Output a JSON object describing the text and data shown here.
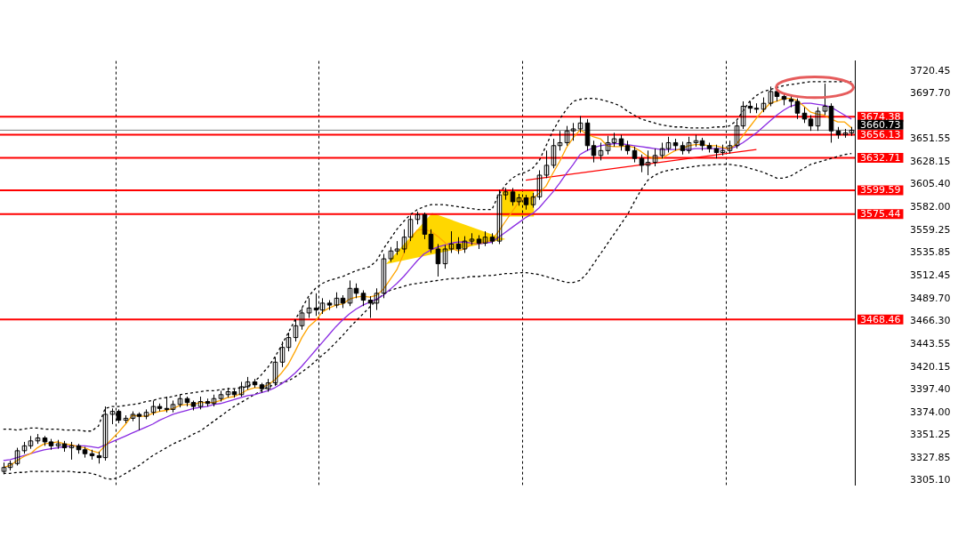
{
  "chart_data": {
    "type": "candlestick",
    "color": "#000000",
    "grid": false,
    "legend": false,
    "marker": "none",
    "tick_labels": "y",
    "categories": [
      null,
      null,
      null,
      null,
      null,
      null,
      null,
      null,
      null,
      null,
      null,
      null,
      null,
      null,
      null,
      null,
      null,
      null,
      null,
      null,
      null,
      null,
      null,
      null,
      null,
      null,
      null,
      null,
      null,
      null,
      null,
      null,
      null,
      null,
      null,
      null,
      null,
      null,
      null,
      null,
      null,
      null,
      null,
      null,
      null,
      null,
      null,
      null,
      null,
      null,
      null,
      null,
      null,
      null,
      null,
      null,
      null,
      null,
      null,
      null,
      null,
      null,
      null,
      null,
      null,
      null,
      null,
      null,
      null,
      null,
      null,
      null,
      null,
      null,
      null,
      null,
      null,
      null,
      null,
      null,
      null,
      null,
      null,
      null,
      null,
      null,
      null,
      null,
      null,
      null,
      null,
      null,
      null,
      null,
      null,
      null,
      null,
      null,
      null,
      null,
      null,
      null,
      null,
      null,
      null,
      null,
      null,
      null,
      null,
      null,
      null,
      null,
      null,
      null,
      null,
      null,
      null,
      null,
      null,
      null,
      null,
      null,
      null,
      null,
      null,
      null
    ],
    "ohlc": [
      [
        3314,
        3323,
        3311,
        3318
      ],
      [
        3318,
        3325,
        3315,
        3322
      ],
      [
        3322,
        3338,
        3320,
        3335
      ],
      [
        3335,
        3344,
        3332,
        3340
      ],
      [
        3340,
        3350,
        3337,
        3345
      ],
      [
        3345,
        3352,
        3342,
        3348
      ],
      [
        3348,
        3350,
        3340,
        3344
      ],
      [
        3344,
        3347,
        3336,
        3340
      ],
      [
        3340,
        3346,
        3337,
        3342
      ],
      [
        3342,
        3345,
        3334,
        3338
      ],
      [
        3338,
        3344,
        3326,
        3340
      ],
      [
        3340,
        3342,
        3332,
        3336
      ],
      [
        3336,
        3339,
        3328,
        3332
      ],
      [
        3332,
        3336,
        3326,
        3330
      ],
      [
        3330,
        3334,
        3322,
        3328
      ],
      [
        3328,
        3380,
        3325,
        3372
      ],
      [
        3372,
        3378,
        3362,
        3375
      ],
      [
        3375,
        3377,
        3363,
        3366
      ],
      [
        3366,
        3371,
        3363,
        3368
      ],
      [
        3368,
        3375,
        3365,
        3372
      ],
      [
        3372,
        3374,
        3356,
        3370
      ],
      [
        3370,
        3377,
        3367,
        3374
      ],
      [
        3374,
        3386,
        3371,
        3380
      ],
      [
        3380,
        3383,
        3375,
        3378
      ],
      [
        3378,
        3390,
        3374,
        3377
      ],
      [
        3377,
        3386,
        3374,
        3382
      ],
      [
        3382,
        3392,
        3379,
        3388
      ],
      [
        3388,
        3390,
        3380,
        3384
      ],
      [
        3384,
        3386,
        3376,
        3380
      ],
      [
        3380,
        3390,
        3377,
        3385
      ],
      [
        3385,
        3388,
        3380,
        3383
      ],
      [
        3383,
        3392,
        3380,
        3388
      ],
      [
        3388,
        3396,
        3385,
        3392
      ],
      [
        3392,
        3399,
        3389,
        3395
      ],
      [
        3395,
        3398,
        3389,
        3392
      ],
      [
        3392,
        3405,
        3390,
        3400
      ],
      [
        3400,
        3410,
        3397,
        3405
      ],
      [
        3405,
        3408,
        3399,
        3402
      ],
      [
        3402,
        3404,
        3394,
        3398
      ],
      [
        3398,
        3408,
        3395,
        3404
      ],
      [
        3404,
        3430,
        3401,
        3425
      ],
      [
        3425,
        3446,
        3420,
        3440
      ],
      [
        3440,
        3455,
        3436,
        3450
      ],
      [
        3450,
        3468,
        3446,
        3462
      ],
      [
        3462,
        3480,
        3458,
        3475
      ],
      [
        3475,
        3490,
        3470,
        3480
      ],
      [
        3480,
        3495,
        3472,
        3478
      ],
      [
        3478,
        3490,
        3474,
        3485
      ],
      [
        3485,
        3488,
        3478,
        3483
      ],
      [
        3483,
        3496,
        3480,
        3490
      ],
      [
        3490,
        3493,
        3480,
        3485
      ],
      [
        3485,
        3508,
        3482,
        3500
      ],
      [
        3500,
        3505,
        3490,
        3495
      ],
      [
        3495,
        3498,
        3482,
        3488
      ],
      [
        3488,
        3492,
        3470,
        3485
      ],
      [
        3485,
        3500,
        3478,
        3495
      ],
      [
        3495,
        3535,
        3490,
        3530
      ],
      [
        3530,
        3542,
        3527,
        3538
      ],
      [
        3538,
        3548,
        3534,
        3540
      ],
      [
        3540,
        3560,
        3536,
        3552
      ],
      [
        3552,
        3574,
        3548,
        3570
      ],
      [
        3570,
        3578,
        3565,
        3575
      ],
      [
        3575,
        3577,
        3550,
        3555
      ],
      [
        3555,
        3560,
        3536,
        3540
      ],
      [
        3540,
        3545,
        3512,
        3525
      ],
      [
        3525,
        3544,
        3520,
        3540
      ],
      [
        3540,
        3558,
        3536,
        3545
      ],
      [
        3545,
        3552,
        3535,
        3540
      ],
      [
        3540,
        3553,
        3536,
        3548
      ],
      [
        3548,
        3556,
        3544,
        3550
      ],
      [
        3550,
        3554,
        3540,
        3546
      ],
      [
        3546,
        3558,
        3543,
        3552
      ],
      [
        3552,
        3556,
        3545,
        3548
      ],
      [
        3548,
        3600,
        3545,
        3595
      ],
      [
        3595,
        3602,
        3590,
        3598
      ],
      [
        3598,
        3602,
        3584,
        3588
      ],
      [
        3588,
        3596,
        3584,
        3592
      ],
      [
        3592,
        3595,
        3580,
        3585
      ],
      [
        3585,
        3597,
        3582,
        3593
      ],
      [
        3593,
        3620,
        3590,
        3615
      ],
      [
        3615,
        3640,
        3612,
        3625
      ],
      [
        3625,
        3652,
        3622,
        3645
      ],
      [
        3645,
        3660,
        3640,
        3648
      ],
      [
        3648,
        3665,
        3645,
        3660
      ],
      [
        3660,
        3668,
        3650,
        3662
      ],
      [
        3662,
        3675,
        3658,
        3668
      ],
      [
        3668,
        3672,
        3640,
        3645
      ],
      [
        3645,
        3650,
        3628,
        3635
      ],
      [
        3635,
        3648,
        3630,
        3640
      ],
      [
        3640,
        3655,
        3636,
        3648
      ],
      [
        3648,
        3658,
        3644,
        3652
      ],
      [
        3652,
        3656,
        3640,
        3645
      ],
      [
        3645,
        3650,
        3636,
        3640
      ],
      [
        3640,
        3644,
        3628,
        3632
      ],
      [
        3632,
        3636,
        3618,
        3625
      ],
      [
        3625,
        3640,
        3615,
        3628
      ],
      [
        3628,
        3642,
        3624,
        3635
      ],
      [
        3635,
        3648,
        3632,
        3642
      ],
      [
        3642,
        3654,
        3638,
        3648
      ],
      [
        3648,
        3652,
        3640,
        3645
      ],
      [
        3645,
        3649,
        3636,
        3640
      ],
      [
        3640,
        3654,
        3637,
        3648
      ],
      [
        3648,
        3656,
        3644,
        3650
      ],
      [
        3650,
        3653,
        3640,
        3645
      ],
      [
        3645,
        3648,
        3638,
        3642
      ],
      [
        3642,
        3646,
        3632,
        3638
      ],
      [
        3638,
        3646,
        3635,
        3640
      ],
      [
        3640,
        3650,
        3637,
        3645
      ],
      [
        3645,
        3670,
        3642,
        3665
      ],
      [
        3665,
        3690,
        3662,
        3685
      ],
      [
        3685,
        3690,
        3678,
        3683
      ],
      [
        3683,
        3688,
        3678,
        3682
      ],
      [
        3682,
        3694,
        3679,
        3688
      ],
      [
        3688,
        3705,
        3685,
        3700
      ],
      [
        3700,
        3703,
        3690,
        3695
      ],
      [
        3695,
        3698,
        3686,
        3692
      ],
      [
        3692,
        3696,
        3684,
        3690
      ],
      [
        3690,
        3693,
        3672,
        3678
      ],
      [
        3678,
        3684,
        3668,
        3672
      ],
      [
        3672,
        3676,
        3660,
        3665
      ],
      [
        3665,
        3684,
        3660,
        3680
      ],
      [
        3680,
        3708,
        3676,
        3685
      ],
      [
        3685,
        3688,
        3648,
        3660
      ],
      [
        3660,
        3664,
        3652,
        3656
      ],
      [
        3656,
        3662,
        3653,
        3658
      ],
      [
        3658,
        3664,
        3655,
        3660.7
      ]
    ],
    "series": [
      {
        "type": "line",
        "color": "#ffa500",
        "line_style": "solid",
        "values": [
          3318,
          3320,
          3325,
          3329,
          3332,
          3338,
          3342,
          3343,
          3344,
          3342,
          3341,
          3339,
          3338,
          3335,
          3333,
          3340,
          3347,
          3354,
          3362,
          3371,
          3370,
          3370,
          3373,
          3375,
          3376,
          3378,
          3381,
          3382,
          3382,
          3384,
          3384,
          3384,
          3386,
          3389,
          3390,
          3393,
          3397,
          3399,
          3399,
          3402,
          3407,
          3414,
          3423,
          3436,
          3450,
          3461,
          3467,
          3476,
          3480,
          3483,
          3484,
          3489,
          3491,
          3492,
          3491,
          3493,
          3499,
          3509,
          3519,
          3535,
          3550,
          3559,
          3560,
          3558,
          3553,
          3547,
          3541,
          3538,
          3540,
          3545,
          3546,
          3547,
          3549,
          3558,
          3568,
          3578,
          3588,
          3592,
          3591,
          3597,
          3604,
          3617,
          3629,
          3643,
          3653,
          3661,
          3657,
          3654,
          3652,
          3645,
          3644,
          3644,
          3645,
          3643,
          3639,
          3634,
          3632,
          3632,
          3636,
          3640,
          3642,
          3645,
          3646,
          3646,
          3645,
          3645,
          3643,
          3642,
          3646,
          3655,
          3664,
          3673,
          3681,
          3688,
          3690,
          3693,
          3693,
          3691,
          3685,
          3679,
          3677,
          3676,
          3672,
          3669,
          3669,
          3663
        ]
      },
      {
        "type": "line",
        "color": "#8a2be2",
        "line_style": "solid",
        "values": [
          3325,
          3326,
          3328,
          3330,
          3332,
          3334,
          3336,
          3337,
          3338,
          3339,
          3340,
          3340,
          3340,
          3339,
          3338,
          3341,
          3344,
          3347,
          3350,
          3353,
          3356,
          3359,
          3362,
          3366,
          3369,
          3372,
          3374,
          3376,
          3378,
          3379,
          3380,
          3382,
          3383,
          3385,
          3387,
          3389,
          3391,
          3392,
          3394,
          3396,
          3399,
          3403,
          3408,
          3414,
          3421,
          3429,
          3437,
          3445,
          3453,
          3461,
          3468,
          3474,
          3479,
          3483,
          3486,
          3489,
          3493,
          3499,
          3505,
          3512,
          3520,
          3528,
          3535,
          3539,
          3542,
          3544,
          3546,
          3547,
          3547,
          3546,
          3545,
          3546,
          3547,
          3552,
          3557,
          3562,
          3567,
          3572,
          3576,
          3582,
          3590,
          3598,
          3607,
          3617,
          3626,
          3636,
          3640,
          3643,
          3645,
          3646,
          3647,
          3647,
          3646,
          3645,
          3644,
          3643,
          3642,
          3641,
          3641,
          3641,
          3641,
          3641,
          3642,
          3642,
          3642,
          3642,
          3642,
          3642,
          3644,
          3648,
          3653,
          3658,
          3664,
          3670,
          3676,
          3681,
          3685,
          3687,
          3688,
          3688,
          3687,
          3686,
          3684,
          3680,
          3676,
          3672
        ]
      },
      {
        "type": "line",
        "color": "#000000",
        "line_style": "dashed",
        "values": [
          3357,
          3357,
          3356,
          3357,
          3358,
          3358,
          3357,
          3357,
          3357,
          3356,
          3356,
          3356,
          3355,
          3355,
          3360,
          3378,
          3380,
          3380,
          3381,
          3382,
          3383,
          3385,
          3386,
          3388,
          3389,
          3390,
          3392,
          3393,
          3394,
          3395,
          3396,
          3396,
          3397,
          3398,
          3398,
          3399,
          3400,
          3405,
          3412,
          3420,
          3430,
          3442,
          3455,
          3468,
          3480,
          3492,
          3500,
          3505,
          3508,
          3510,
          3512,
          3515,
          3518,
          3520,
          3522,
          3528,
          3540,
          3550,
          3560,
          3568,
          3575,
          3580,
          3583,
          3585,
          3585,
          3585,
          3584,
          3583,
          3582,
          3581,
          3580,
          3580,
          3580,
          3595,
          3605,
          3612,
          3616,
          3618,
          3622,
          3630,
          3645,
          3660,
          3672,
          3682,
          3690,
          3692,
          3693,
          3693,
          3692,
          3690,
          3688,
          3685,
          3680,
          3676,
          3672,
          3670,
          3668,
          3666,
          3665,
          3664,
          3664,
          3663,
          3663,
          3663,
          3663,
          3664,
          3664,
          3665,
          3670,
          3680,
          3690,
          3696,
          3700,
          3702,
          3704,
          3706,
          3707,
          3708,
          3709,
          3710,
          3710,
          3710,
          3710,
          3710,
          3710,
          3710
        ]
      },
      {
        "type": "line",
        "color": "#000000",
        "line_style": "dashed",
        "values": [
          3312,
          3312,
          3313,
          3313,
          3314,
          3314,
          3314,
          3314,
          3314,
          3314,
          3314,
          3313,
          3313,
          3312,
          3310,
          3307,
          3306,
          3308,
          3312,
          3316,
          3320,
          3325,
          3330,
          3334,
          3338,
          3342,
          3345,
          3348,
          3352,
          3355,
          3360,
          3365,
          3370,
          3375,
          3380,
          3384,
          3388,
          3392,
          3396,
          3400,
          3402,
          3404,
          3406,
          3410,
          3415,
          3420,
          3426,
          3432,
          3438,
          3445,
          3452,
          3460,
          3467,
          3474,
          3481,
          3488,
          3494,
          3498,
          3500,
          3502,
          3504,
          3505,
          3506,
          3507,
          3508,
          3509,
          3510,
          3510,
          3511,
          3512,
          3512,
          3513,
          3513,
          3514,
          3515,
          3515,
          3516,
          3516,
          3515,
          3514,
          3512,
          3510,
          3508,
          3506,
          3506,
          3508,
          3515,
          3525,
          3535,
          3545,
          3555,
          3565,
          3575,
          3588,
          3600,
          3610,
          3615,
          3618,
          3620,
          3621,
          3622,
          3623,
          3624,
          3625,
          3625,
          3626,
          3626,
          3626,
          3625,
          3624,
          3622,
          3620,
          3618,
          3615,
          3612,
          3612,
          3614,
          3618,
          3622,
          3626,
          3628,
          3630,
          3632,
          3634,
          3636,
          3637
        ]
      },
      {
        "type": "line",
        "color": "#ff0000",
        "line_style": "solid",
        "values": [
          null,
          null,
          null,
          null,
          null,
          null,
          null,
          null,
          null,
          null,
          null,
          null,
          null,
          null,
          null,
          null,
          null,
          null,
          null,
          null,
          null,
          null,
          null,
          null,
          null,
          null,
          null,
          null,
          null,
          null,
          null,
          null,
          null,
          null,
          null,
          null,
          null,
          null,
          null,
          null,
          null,
          null,
          null,
          null,
          null,
          null,
          null,
          null,
          null,
          null,
          null,
          null,
          null,
          null,
          null,
          null,
          null,
          null,
          null,
          null,
          null,
          null,
          null,
          null,
          null,
          null,
          null,
          null,
          null,
          null,
          null,
          null,
          null,
          null,
          null,
          null,
          null,
          3610,
          null,
          null,
          null,
          null,
          null,
          null,
          null,
          null,
          null,
          null,
          null,
          null,
          null,
          null,
          null,
          null,
          null,
          null,
          null,
          null,
          null,
          null,
          null,
          null,
          null,
          null,
          null,
          null,
          null,
          null,
          null,
          null,
          null,
          3641,
          null,
          null,
          null,
          null,
          null,
          null,
          null,
          null,
          null,
          null,
          null,
          null,
          null,
          null
        ]
      }
    ],
    "ylim": [
      3300.2,
      3731
    ],
    "yticks": [
      {
        "value": 3305.1,
        "label": "3305.10"
      },
      3327.85,
      3351.25,
      {
        "value": 3374,
        "label": "3374.00"
      },
      {
        "value": 3397.4,
        "label": "3397.40"
      },
      3420.15,
      3443.55,
      {
        "value": 3466.3,
        "label": "3466.30"
      },
      {
        "value": 3489.7,
        "label": "3489.70"
      },
      3512.45,
      3535.85,
      3559.25,
      {
        "value": 3582,
        "label": "3582.00"
      },
      {
        "value": 3605.4,
        "label": "3605.40"
      },
      3628.15,
      3651.55,
      {
        "value": 3697.7,
        "label": "3697.70"
      },
      3720.45
    ],
    "ref_lines": [
      {
        "axis": "y",
        "value": 3674.38,
        "label": "3674.38",
        "color": "#ff0000"
      },
      {
        "axis": "y",
        "value": 3660.73,
        "label": "3660.73",
        "color": "#808080"
      },
      {
        "axis": "y",
        "value": 3656.13,
        "label": "3656.13",
        "color": "#ff0000"
      },
      {
        "axis": "y",
        "value": 3632.71,
        "label": "3632.71",
        "color": "#ff0000"
      },
      {
        "axis": "y",
        "value": 3599.59,
        "label": "3599.59",
        "color": "#ff0000"
      },
      {
        "axis": "y",
        "value": 3575.44,
        "label": "3575.44",
        "color": "#ff0000"
      },
      {
        "axis": "y",
        "value": 3468.46,
        "label": "3468.46",
        "color": "#ff0000"
      }
    ]
  }
}
